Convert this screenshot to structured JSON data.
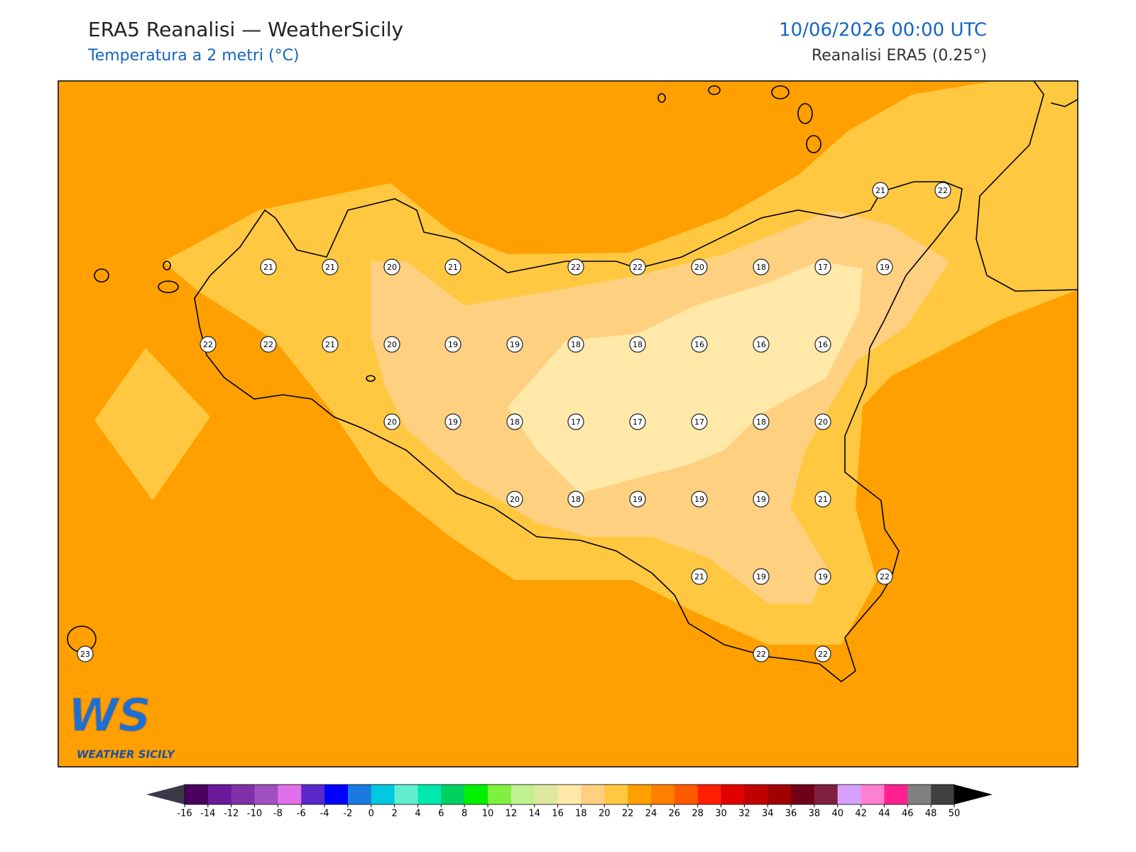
{
  "header": {
    "title": "ERA5 Reanalisi — WeatherSicily",
    "subtitle": "Temperatura a 2 metri (°C)",
    "datetime": "10/06/2026 00:00 UTC",
    "source": "Reanalisi ERA5 (0.25°)"
  },
  "map": {
    "stations": [
      21,
      22,
      21,
      21,
      20,
      21,
      22,
      22,
      20,
      18,
      17,
      19,
      22,
      22,
      21,
      20,
      19,
      19,
      18,
      18,
      16,
      16,
      16,
      20,
      19,
      18,
      17,
      17,
      17,
      18,
      20,
      20,
      18,
      19,
      19,
      19,
      21,
      21,
      19,
      19,
      22,
      23,
      22,
      22
    ]
  },
  "colorbar": {
    "ticks": [
      -16,
      -14,
      -12,
      -10,
      -8,
      -6,
      -4,
      -2,
      0,
      2,
      4,
      6,
      8,
      10,
      12,
      14,
      16,
      18,
      20,
      22,
      24,
      26,
      28,
      30,
      32,
      34,
      36,
      38,
      40,
      42,
      44,
      46,
      48,
      50
    ],
    "colors": [
      "#4b0060",
      "#6a1a9a",
      "#8030a8",
      "#a050c0",
      "#e070e8",
      "#5a28c8",
      "#0000ff",
      "#1a7ae0",
      "#00c8e0",
      "#60f0d0",
      "#00e8b0",
      "#00d060",
      "#00f000",
      "#80f040",
      "#c0f090",
      "#e0e8a0",
      "#ffe8a8",
      "#ffd080",
      "#ffc840",
      "#ffa000",
      "#ff8000",
      "#ff5a00",
      "#ff1e00",
      "#e00000",
      "#c00000",
      "#a00000",
      "#700018",
      "#802040",
      "#d8a0ff",
      "#ff80d0",
      "#ff2090",
      "#808080",
      "#404040"
    ],
    "under": "#3a3a48",
    "over": "#000000"
  },
  "logo": {
    "mark": "WS",
    "text": "WEATHER SICILY"
  }
}
